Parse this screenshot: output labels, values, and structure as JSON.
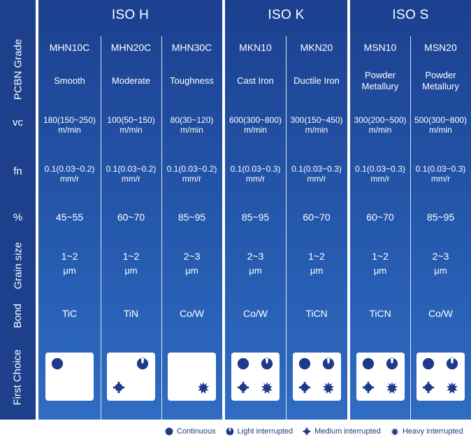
{
  "row_labels": {
    "grade": "PCBN Grade",
    "vc": "vc",
    "fn": "fn",
    "percent": "%",
    "grain": "Grain size",
    "bond": "Bond",
    "first_choice": "First Choice"
  },
  "groups": [
    {
      "title": "ISO H",
      "columns": [
        {
          "grade": "MHN10C",
          "application": [
            "Smooth"
          ],
          "vc": "180(150~250)",
          "vc_unit": "m/min",
          "fn": "0.1(0.03~0.2)",
          "fn_unit": "mm/r",
          "percent": "45~55",
          "grain": "1~2",
          "grain_unit": "μm",
          "bond": "TiC",
          "marks": [
            "continuous"
          ]
        },
        {
          "grade": "MHN20C",
          "application": [
            "Moderate"
          ],
          "vc": "100(50~150)",
          "vc_unit": "m/min",
          "fn": "0.1(0.03~0.2)",
          "fn_unit": "mm/r",
          "percent": "60~70",
          "grain": "1~2",
          "grain_unit": "μm",
          "bond": "TiN",
          "marks": [
            "light",
            "medium"
          ]
        },
        {
          "grade": "MHN30C",
          "application": [
            "Toughness"
          ],
          "vc": "80(30~120)",
          "vc_unit": "m/min",
          "fn": "0.1(0.03~0.2)",
          "fn_unit": "mm/r",
          "percent": "85~95",
          "grain": "2~3",
          "grain_unit": "μm",
          "bond": "Co/W",
          "marks": [
            "heavy"
          ]
        }
      ]
    },
    {
      "title": "ISO K",
      "columns": [
        {
          "grade": "MKN10",
          "application": [
            "Cast Iron"
          ],
          "vc": "600(300~800)",
          "vc_unit": "m/min",
          "fn": "0.1(0.03~0.3)",
          "fn_unit": "mm/r",
          "percent": "85~95",
          "grain": "2~3",
          "grain_unit": "μm",
          "bond": "Co/W",
          "marks": [
            "continuous",
            "light",
            "medium",
            "heavy"
          ]
        },
        {
          "grade": "MKN20",
          "application": [
            "Ductile Iron"
          ],
          "vc": "300(150~450)",
          "vc_unit": "m/min",
          "fn": "0.1(0.03~0.3)",
          "fn_unit": "mm/r",
          "percent": "60~70",
          "grain": "1~2",
          "grain_unit": "μm",
          "bond": "TiCN",
          "marks": [
            "continuous",
            "light",
            "medium",
            "heavy"
          ]
        }
      ]
    },
    {
      "title": "ISO S",
      "columns": [
        {
          "grade": "MSN10",
          "application": [
            "Powder",
            "Metallury"
          ],
          "vc": "300(200~500)",
          "vc_unit": "m/min",
          "fn": "0.1(0.03~0.3)",
          "fn_unit": "mm/r",
          "percent": "60~70",
          "grain": "1~2",
          "grain_unit": "μm",
          "bond": "TiCN",
          "marks": [
            "continuous",
            "light",
            "medium",
            "heavy"
          ]
        },
        {
          "grade": "MSN20",
          "application": [
            "Powder",
            "Metallury"
          ],
          "vc": "500(300~800)",
          "vc_unit": "m/min",
          "fn": "0.1(0.03~0.3)",
          "fn_unit": "mm/r",
          "percent": "85~95",
          "grain": "2~3",
          "grain_unit": "μm",
          "bond": "Co/W",
          "marks": [
            "continuous",
            "light",
            "medium",
            "heavy"
          ]
        }
      ]
    }
  ],
  "legend": [
    {
      "key": "continuous",
      "label": "Continuous"
    },
    {
      "key": "light",
      "label": "Light interrupted"
    },
    {
      "key": "medium",
      "label": "Medium interrupted"
    },
    {
      "key": "heavy",
      "label": "Heavy interrupted"
    }
  ],
  "colors": {
    "header": "#1d3f8c",
    "mark": "#1e3a8a",
    "legend_text": "#1e3d7a"
  }
}
